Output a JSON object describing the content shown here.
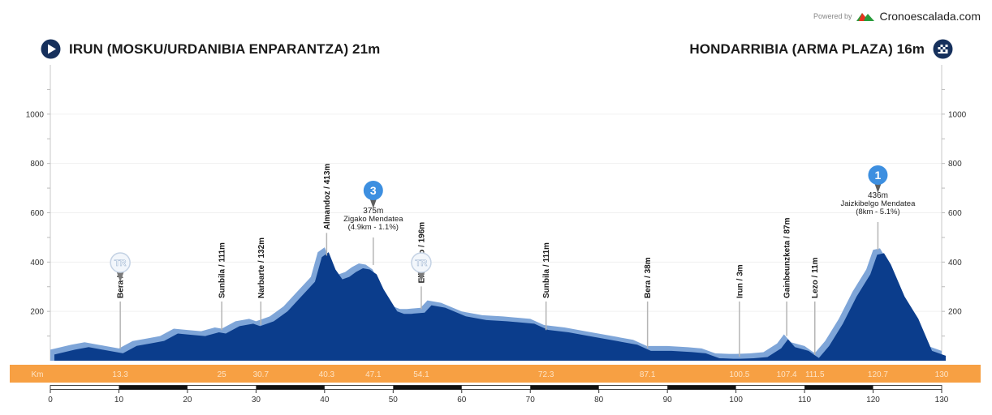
{
  "brand": {
    "powered_by": "Powered by",
    "name": "Cronoescalada.com"
  },
  "start": {
    "label": "IRUN (MOSKU/URDANIBIA ENPARANTZA) 21m",
    "icon": "play-icon"
  },
  "finish": {
    "label": "HONDARRIBIA (ARMA PLAZA) 16m",
    "icon": "checkered-flag-icon"
  },
  "colors": {
    "profile_fill": "#0b3d8c",
    "profile_shadow": "#7ea5d8",
    "band": "#f7a043",
    "band_text": "#fde3c5",
    "marker": "#3d8fe0"
  },
  "chart_data": {
    "type": "area",
    "xlabel": "Km",
    "xlim": [
      0,
      130
    ],
    "ylim": [
      0,
      1200
    ],
    "x_ticks": [
      0,
      10,
      20,
      30,
      40,
      50,
      60,
      70,
      80,
      90,
      100,
      110,
      120,
      130
    ],
    "y_ticks": [
      200,
      400,
      600,
      800,
      1000
    ],
    "profile": {
      "x": [
        0,
        3,
        5,
        7,
        10,
        12,
        14,
        16,
        18,
        20,
        22,
        24,
        25,
        27,
        29,
        30,
        32,
        34,
        36,
        38,
        39,
        40,
        41,
        42,
        43,
        44,
        45,
        46,
        47,
        48,
        50,
        51,
        52,
        54,
        55,
        57,
        60,
        63,
        66,
        70,
        72,
        75,
        78,
        80,
        83,
        85,
        87,
        90,
        93,
        95,
        97,
        99,
        100,
        102,
        104,
        106,
        107,
        108,
        110,
        111,
        111.5,
        113,
        115,
        117,
        119,
        120,
        121,
        122,
        124,
        126,
        128,
        130
      ],
      "y": [
        25,
        45,
        55,
        45,
        30,
        60,
        70,
        80,
        110,
        105,
        100,
        115,
        110,
        140,
        150,
        140,
        160,
        200,
        260,
        320,
        420,
        440,
        370,
        330,
        340,
        360,
        375,
        370,
        350,
        290,
        200,
        190,
        190,
        195,
        225,
        215,
        180,
        165,
        160,
        150,
        125,
        115,
        100,
        90,
        75,
        65,
        40,
        40,
        35,
        30,
        10,
        8,
        8,
        10,
        15,
        50,
        87,
        55,
        40,
        20,
        11,
        60,
        150,
        260,
        350,
        430,
        436,
        390,
        260,
        170,
        40,
        20
      ]
    },
    "km_band": {
      "label": "Km",
      "values": [
        "13.3",
        "25",
        "30.7",
        "40.3",
        "47.1",
        "54.1",
        "72.3",
        "87.1",
        "100.5",
        "107.4",
        "111.5",
        "120.7",
        "130"
      ]
    },
    "waypoints": [
      {
        "km": 10.2,
        "elev": 36,
        "label": "Bera / 36m"
      },
      {
        "km": 25,
        "elev": 111,
        "label": "Sunbila / 111m"
      },
      {
        "km": 30.7,
        "elev": 132,
        "label": "Narbarte / 132m"
      },
      {
        "km": 40.3,
        "elev": 413,
        "label": "Almandoz / 413m"
      },
      {
        "km": 54.1,
        "elev": 196,
        "label": "Elizondo / 196m"
      },
      {
        "km": 72.3,
        "elev": 111,
        "label": "Sunbila / 111m"
      },
      {
        "km": 87.1,
        "elev": 38,
        "label": "Bera / 38m"
      },
      {
        "km": 100.5,
        "elev": 3,
        "label": "Irun / 3m"
      },
      {
        "km": 107.4,
        "elev": 87,
        "label": "Gainbeunzketa / 87m"
      },
      {
        "km": 111.5,
        "elev": 11,
        "label": "Lezo / 11m"
      }
    ],
    "climbs": [
      {
        "km": 47.1,
        "elev": 375,
        "category": "3",
        "lines": [
          "375m",
          "Zigako Mendatea",
          "(4.9km - 1.1%)"
        ]
      },
      {
        "km": 120.7,
        "elev": 436,
        "category": "1",
        "lines": [
          "436m",
          "Jaizkibelgo Mendatea",
          "(8km - 5.1%)"
        ]
      }
    ],
    "special_markers": [
      {
        "km": 10.2,
        "label": "TR"
      },
      {
        "km": 54.1,
        "label": "TR"
      }
    ]
  }
}
